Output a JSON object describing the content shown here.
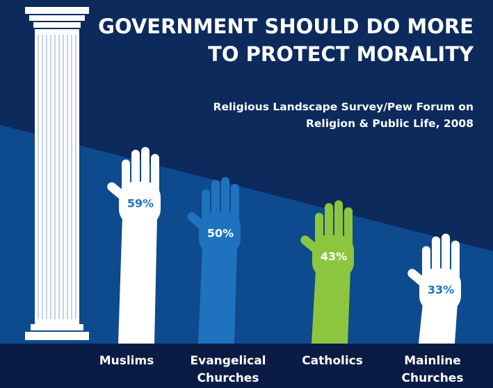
{
  "chart_data": {
    "type": "bar",
    "title": "GOVERNMENT SHOULD DO MORE TO PROTECT MORALITY",
    "subtitle": "Religious Landscape Survey/Pew Forum on Religion & Public Life, 2008",
    "categories": [
      "Muslims",
      "Evangelical Churches",
      "Catholics",
      "Mainline Churches"
    ],
    "values": [
      59,
      50,
      43,
      33
    ],
    "value_labels": [
      "59%",
      "50%",
      "43%",
      "33%"
    ],
    "colors": [
      "#ffffff",
      "#1f72bd",
      "#8cc63f",
      "#ffffff"
    ],
    "label_colors": [
      "#1f72bd",
      "#ffffff",
      "#ffffff",
      "#1f72bd"
    ]
  }
}
